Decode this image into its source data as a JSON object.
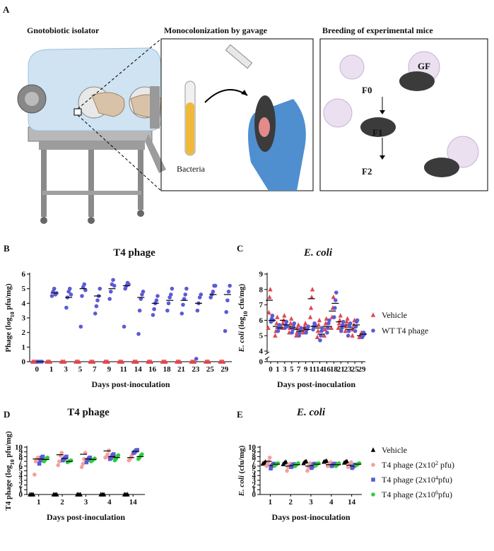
{
  "panel_a": {
    "letter": "A",
    "isolator_title": "Gnotobiotic isolator",
    "gavage_title": "Monocolonization by gavage",
    "breeding_title": "Breeding of experimental mice",
    "bacteria": "Bacteria",
    "gf": "GF",
    "f0": "F0",
    "f1": "F1",
    "f2": "F2"
  },
  "chart_data": [
    {
      "type": "dot",
      "panel": "B",
      "title": "T4 phage",
      "title_italic": false,
      "y_label": [
        {
          "text": "Phage (log"
        },
        {
          "text": "10",
          "style": "sub"
        },
        {
          "text": " pfu/mg)"
        }
      ],
      "x_label": "Days post-inoculation",
      "categories": [
        "0",
        "1",
        "3",
        "5",
        "7",
        "9",
        "11",
        "14",
        "16",
        "18",
        "21",
        "23",
        "25",
        "29"
      ],
      "ylim": [
        0,
        6
      ],
      "yticks": [
        0,
        1,
        2,
        3,
        4,
        5,
        6
      ],
      "axis_break": false,
      "legend": false,
      "series": [
        {
          "color": "#e0474c",
          "marker": "triangle",
          "values": [
            [
              0,
              0,
              0
            ],
            [
              0,
              0,
              0
            ],
            [
              0,
              0,
              0
            ],
            [
              0,
              0,
              0
            ],
            [
              0,
              0,
              0
            ],
            [
              0,
              0,
              0
            ],
            [
              0,
              0,
              0
            ],
            [
              0,
              0,
              0
            ],
            [
              0,
              0,
              0
            ],
            [
              0,
              0,
              0
            ],
            [
              0,
              0,
              0
            ],
            [
              0,
              0,
              0
            ],
            [
              0,
              0,
              0
            ],
            [
              0,
              0,
              0
            ]
          ]
        },
        {
          "color": "#5b5bd6",
          "marker": "circle",
          "values": [
            [
              0,
              0,
              0,
              0,
              0
            ],
            [
              4.5,
              4.8,
              5.0,
              4.6,
              4.7
            ],
            [
              3.7,
              4.4,
              4.8,
              5.0,
              4.6
            ],
            [
              2.4,
              4.5,
              5.1,
              5.3,
              4.9
            ],
            [
              3.3,
              3.8,
              4.2,
              4.5,
              5.0
            ],
            [
              4.3,
              4.8,
              5.3,
              5.6,
              5.2
            ],
            [
              2.4,
              5.0,
              5.2,
              5.4,
              5.3
            ],
            [
              1.9,
              3.5,
              4.3,
              4.6,
              4.8
            ],
            [
              3.2,
              3.6,
              4.0,
              4.2,
              4.5
            ],
            [
              3.5,
              4.0,
              4.4,
              4.6,
              5.0
            ],
            [
              3.3,
              3.9,
              4.3,
              4.6,
              5.0
            ],
            [
              0.2,
              3.5,
              4.0,
              4.4,
              4.6
            ],
            [
              4.4,
              4.6,
              4.8,
              5.2,
              5.2
            ],
            [
              2.1,
              3.4,
              4.2,
              4.8,
              5.2
            ]
          ],
          "means": [
            0,
            4.7,
            4.4,
            5.0,
            4.5,
            5.0,
            5.2,
            4.4,
            4.0,
            4.2,
            4.2,
            4.0,
            4.6,
            4.6
          ]
        }
      ]
    },
    {
      "type": "dot",
      "panel": "C",
      "title": "E. coli",
      "title_italic": true,
      "y_label": [
        {
          "text": "E. coli",
          "style": "italic"
        },
        {
          "text": " (log"
        },
        {
          "text": "10",
          "style": "sub"
        },
        {
          "text": " cfu/mg)"
        }
      ],
      "x_label": "Days post-inoculation",
      "categories": [
        "0",
        "1",
        "3",
        "5",
        "7",
        "9",
        "11",
        "14",
        "16",
        "18",
        "21",
        "23",
        "25",
        "29"
      ],
      "ylim": [
        4,
        9
      ],
      "yticks": [
        0,
        4,
        5,
        6,
        7,
        8,
        9
      ],
      "axis_break": true,
      "legend": true,
      "series": [
        {
          "name": "Vehicle",
          "color": "#e0474c",
          "marker": "triangle",
          "values": [
            [
              5.5,
              6.5,
              7.5,
              8.0
            ],
            [
              5.0,
              5.3,
              5.8,
              6.2
            ],
            [
              5.5,
              5.8,
              6.0,
              6.3
            ],
            [
              5.2,
              5.5,
              5.8,
              6.1
            ],
            [
              5.0,
              5.2,
              5.5,
              5.7
            ],
            [
              5.2,
              5.4,
              5.6,
              5.8
            ],
            [
              6.2,
              6.8,
              7.5,
              8.0
            ],
            [
              4.9,
              5.3,
              5.7,
              6.0
            ],
            [
              5.0,
              5.4,
              5.8,
              6.1
            ],
            [
              5.5,
              6.2,
              6.8,
              7.5
            ],
            [
              5.5,
              5.8,
              6.0,
              6.3
            ],
            [
              5.3,
              5.6,
              5.9,
              6.1
            ],
            [
              5.0,
              5.4,
              5.7,
              6.0
            ],
            [
              4.9,
              5.0,
              5.1,
              5.2
            ]
          ],
          "means": [
            7.3,
            5.6,
            6.0,
            5.6,
            5.4,
            5.5,
            7.4,
            5.5,
            5.6,
            6.6,
            5.9,
            5.7,
            5.5,
            5.0
          ]
        },
        {
          "name": "WT T4 phage",
          "color": "#5b5bd6",
          "marker": "circle",
          "values": [
            [
              5.9,
              6.1,
              6.3,
              6.0
            ],
            [
              5.3,
              5.5,
              5.7,
              5.6
            ],
            [
              5.5,
              5.7,
              5.9,
              5.6
            ],
            [
              5.2,
              5.4,
              5.6,
              5.8
            ],
            [
              5.0,
              5.2,
              5.4,
              5.5
            ],
            [
              5.2,
              5.4,
              5.5,
              5.6
            ],
            [
              5.4,
              5.6,
              5.8,
              5.7
            ],
            [
              4.7,
              5.0,
              5.3,
              5.5
            ],
            [
              5.2,
              5.5,
              5.8,
              6.0
            ],
            [
              6.2,
              6.8,
              7.3,
              7.8
            ],
            [
              5.3,
              5.5,
              5.7,
              5.9
            ],
            [
              5.0,
              5.3,
              5.6,
              5.8
            ],
            [
              5.3,
              5.6,
              5.9,
              6.0
            ],
            [
              4.9,
              5.0,
              5.2,
              5.1
            ]
          ],
          "means": [
            6.0,
            5.5,
            5.7,
            5.5,
            5.3,
            5.4,
            5.6,
            5.1,
            5.6,
            7.1,
            5.6,
            5.4,
            5.7,
            5.1
          ]
        }
      ]
    },
    {
      "type": "dot",
      "panel": "D",
      "title": "T4 phage",
      "title_italic": false,
      "y_label": [
        {
          "text": "T4 phage (log"
        },
        {
          "text": "10",
          "style": "sub"
        },
        {
          "text": " pfu/mg)"
        }
      ],
      "x_label": "Days post-inoculation",
      "categories": [
        "1",
        "2",
        "3",
        "4",
        "14"
      ],
      "ylim": [
        0,
        10
      ],
      "yticks": [
        0,
        1,
        2,
        3,
        4,
        5,
        6,
        7,
        8,
        9,
        10
      ],
      "axis_break": false,
      "legend": false,
      "series": [
        {
          "color": "#000000",
          "marker": "triangle",
          "values": [
            [
              0,
              0,
              0
            ],
            [
              0,
              0,
              0
            ],
            [
              0,
              0,
              0
            ],
            [
              0,
              0,
              0
            ],
            [
              0,
              0,
              0
            ]
          ]
        },
        {
          "color": "#f4a09c",
          "marker": "circle",
          "values": [
            [
              4.2,
              7.0,
              7.5,
              7.8
            ],
            [
              6.2,
              7.0,
              8.2,
              8.8
            ],
            [
              5.8,
              6.5,
              7.5,
              8.8
            ],
            [
              7.8,
              8.0,
              8.5,
              9.3
            ],
            [
              7.2,
              7.5,
              8.0,
              8.5
            ]
          ],
          "means": [
            7.5,
            8.4,
            8.5,
            9.2,
            7.8
          ]
        },
        {
          "color": "#5b5bd6",
          "marker": "square",
          "values": [
            [
              6.5,
              7.2,
              7.8,
              8.0
            ],
            [
              7.2,
              7.5,
              7.8,
              8.0
            ],
            [
              6.8,
              7.3,
              7.6,
              7.8
            ],
            [
              7.5,
              7.8,
              8.3,
              8.5
            ],
            [
              8.8,
              9.0,
              9.3,
              9.4
            ]
          ],
          "means": [
            7.5,
            7.6,
            7.5,
            8.0,
            9.1
          ]
        },
        {
          "color": "#2ecc40",
          "marker": "circle",
          "values": [
            [
              7.0,
              7.3,
              7.6,
              7.8
            ],
            [
              6.8,
              7.0,
              7.1,
              7.2
            ],
            [
              7.0,
              7.2,
              7.4,
              7.6
            ],
            [
              7.2,
              7.5,
              8.0,
              8.3
            ],
            [
              7.5,
              7.8,
              8.2,
              8.5
            ]
          ],
          "means": [
            7.4,
            7.0,
            7.4,
            7.8,
            8.0
          ]
        }
      ]
    },
    {
      "type": "dot",
      "panel": "E",
      "title": "E. coli",
      "title_italic": true,
      "y_label": [
        {
          "text": "E. coli",
          "style": "italic"
        },
        {
          "text": " (cfu/mg)"
        }
      ],
      "x_label": "Days post-inoculation",
      "categories": [
        "1",
        "2",
        "3",
        "4",
        "14"
      ],
      "ylim": [
        0,
        10
      ],
      "yticks": [
        0,
        1,
        2,
        3,
        4,
        5,
        6,
        7,
        8,
        9,
        10
      ],
      "axis_break": false,
      "legend": true,
      "series": [
        {
          "name": "Vehicle",
          "color": "#000000",
          "marker": "triangle",
          "values": [
            [
              6.5,
              6.7,
              6.9
            ],
            [
              6.4,
              6.7,
              6.9
            ],
            [
              6.6,
              6.9,
              7.0
            ],
            [
              6.9,
              7.0,
              7.1
            ],
            [
              6.7,
              6.9,
              7.0
            ]
          ]
        },
        {
          "name": [
            {
              "text": "T4 phage (2x10"
            },
            {
              "text": "2",
              "style": "sup"
            },
            {
              "text": " pfu)"
            }
          ],
          "color": "#f4a09c",
          "marker": "circle",
          "values": [
            [
              6.0,
              6.5,
              7.0,
              7.8
            ],
            [
              5.0,
              5.8,
              6.3,
              6.5
            ],
            [
              5.0,
              5.8,
              6.2,
              6.6
            ],
            [
              6.0,
              6.2,
              6.5,
              6.8
            ],
            [
              5.8,
              6.0,
              6.3,
              6.8
            ]
          ],
          "means": [
            7.0,
            6.0,
            6.0,
            6.3,
            6.2
          ]
        },
        {
          "name": [
            {
              "text": "T4 phage (2x10"
            },
            {
              "text": "4",
              "style": "sup"
            },
            {
              "text": "pfu)"
            }
          ],
          "color": "#5b5bd6",
          "marker": "square",
          "values": [
            [
              5.5,
              6.0,
              6.3,
              6.5
            ],
            [
              5.8,
              6.0,
              6.3,
              6.4
            ],
            [
              5.6,
              5.9,
              6.3,
              6.5
            ],
            [
              6.0,
              6.2,
              6.4,
              6.5
            ],
            [
              5.6,
              5.9,
              6.1,
              6.3
            ]
          ],
          "means": [
            6.1,
            6.1,
            6.1,
            6.3,
            6.0
          ]
        },
        {
          "name": [
            {
              "text": "T4 phage (2x10"
            },
            {
              "text": "6",
              "style": "sup"
            },
            {
              "text": "pfu)"
            }
          ],
          "color": "#2ecc40",
          "marker": "circle",
          "values": [
            [
              6.1,
              6.3,
              6.5,
              6.6
            ],
            [
              6.0,
              6.3,
              6.4,
              6.6
            ],
            [
              6.1,
              6.3,
              6.5,
              6.6
            ],
            [
              6.0,
              6.2,
              6.4,
              6.6
            ],
            [
              6.2,
              6.3,
              6.5,
              6.6
            ]
          ],
          "means": [
            6.4,
            6.3,
            6.4,
            6.3,
            6.4
          ]
        }
      ]
    }
  ]
}
